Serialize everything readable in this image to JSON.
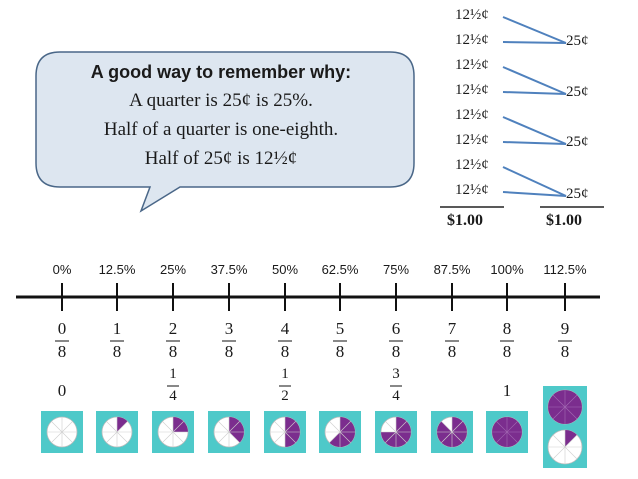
{
  "bubble": {
    "title": "A good way to remember why:",
    "lines": [
      "A quarter is 25¢ is 25%.",
      "Half of a quarter is one-eighth.",
      "Half of 25¢ is 12½¢"
    ]
  },
  "sum": {
    "eighths": [
      "12½¢",
      "12½¢",
      "12½¢",
      "12½¢",
      "12½¢",
      "12½¢",
      "12½¢",
      "12½¢"
    ],
    "quarters": [
      "25¢",
      "25¢",
      "25¢",
      "25¢"
    ],
    "total_left": "$1.00",
    "total_right": "$1.00"
  },
  "number_line": {
    "percents": [
      "0%",
      "12.5%",
      "25%",
      "37.5%",
      "50%",
      "62.5%",
      "75%",
      "87.5%",
      "100%",
      "112.5%"
    ],
    "numerators": [
      "0",
      "1",
      "2",
      "3",
      "4",
      "5",
      "6",
      "7",
      "8",
      "9"
    ],
    "denominator": "8",
    "simplified": [
      {
        "whole": "0"
      },
      null,
      {
        "num": "1",
        "den": "4"
      },
      null,
      {
        "num": "1",
        "den": "2"
      },
      null,
      {
        "num": "3",
        "den": "4"
      },
      null,
      {
        "whole": "1"
      },
      null
    ],
    "pie_eighths_filled": [
      0,
      1,
      2,
      3,
      4,
      5,
      6,
      7,
      8,
      9
    ]
  },
  "colors": {
    "bubble_fill": "#dde6f0",
    "bubble_stroke": "#4a6788",
    "connector": "#4f81bd",
    "pie_fill": "#7b2d8e",
    "pie_frame": "#4ec9c9",
    "axis": "#111111"
  }
}
